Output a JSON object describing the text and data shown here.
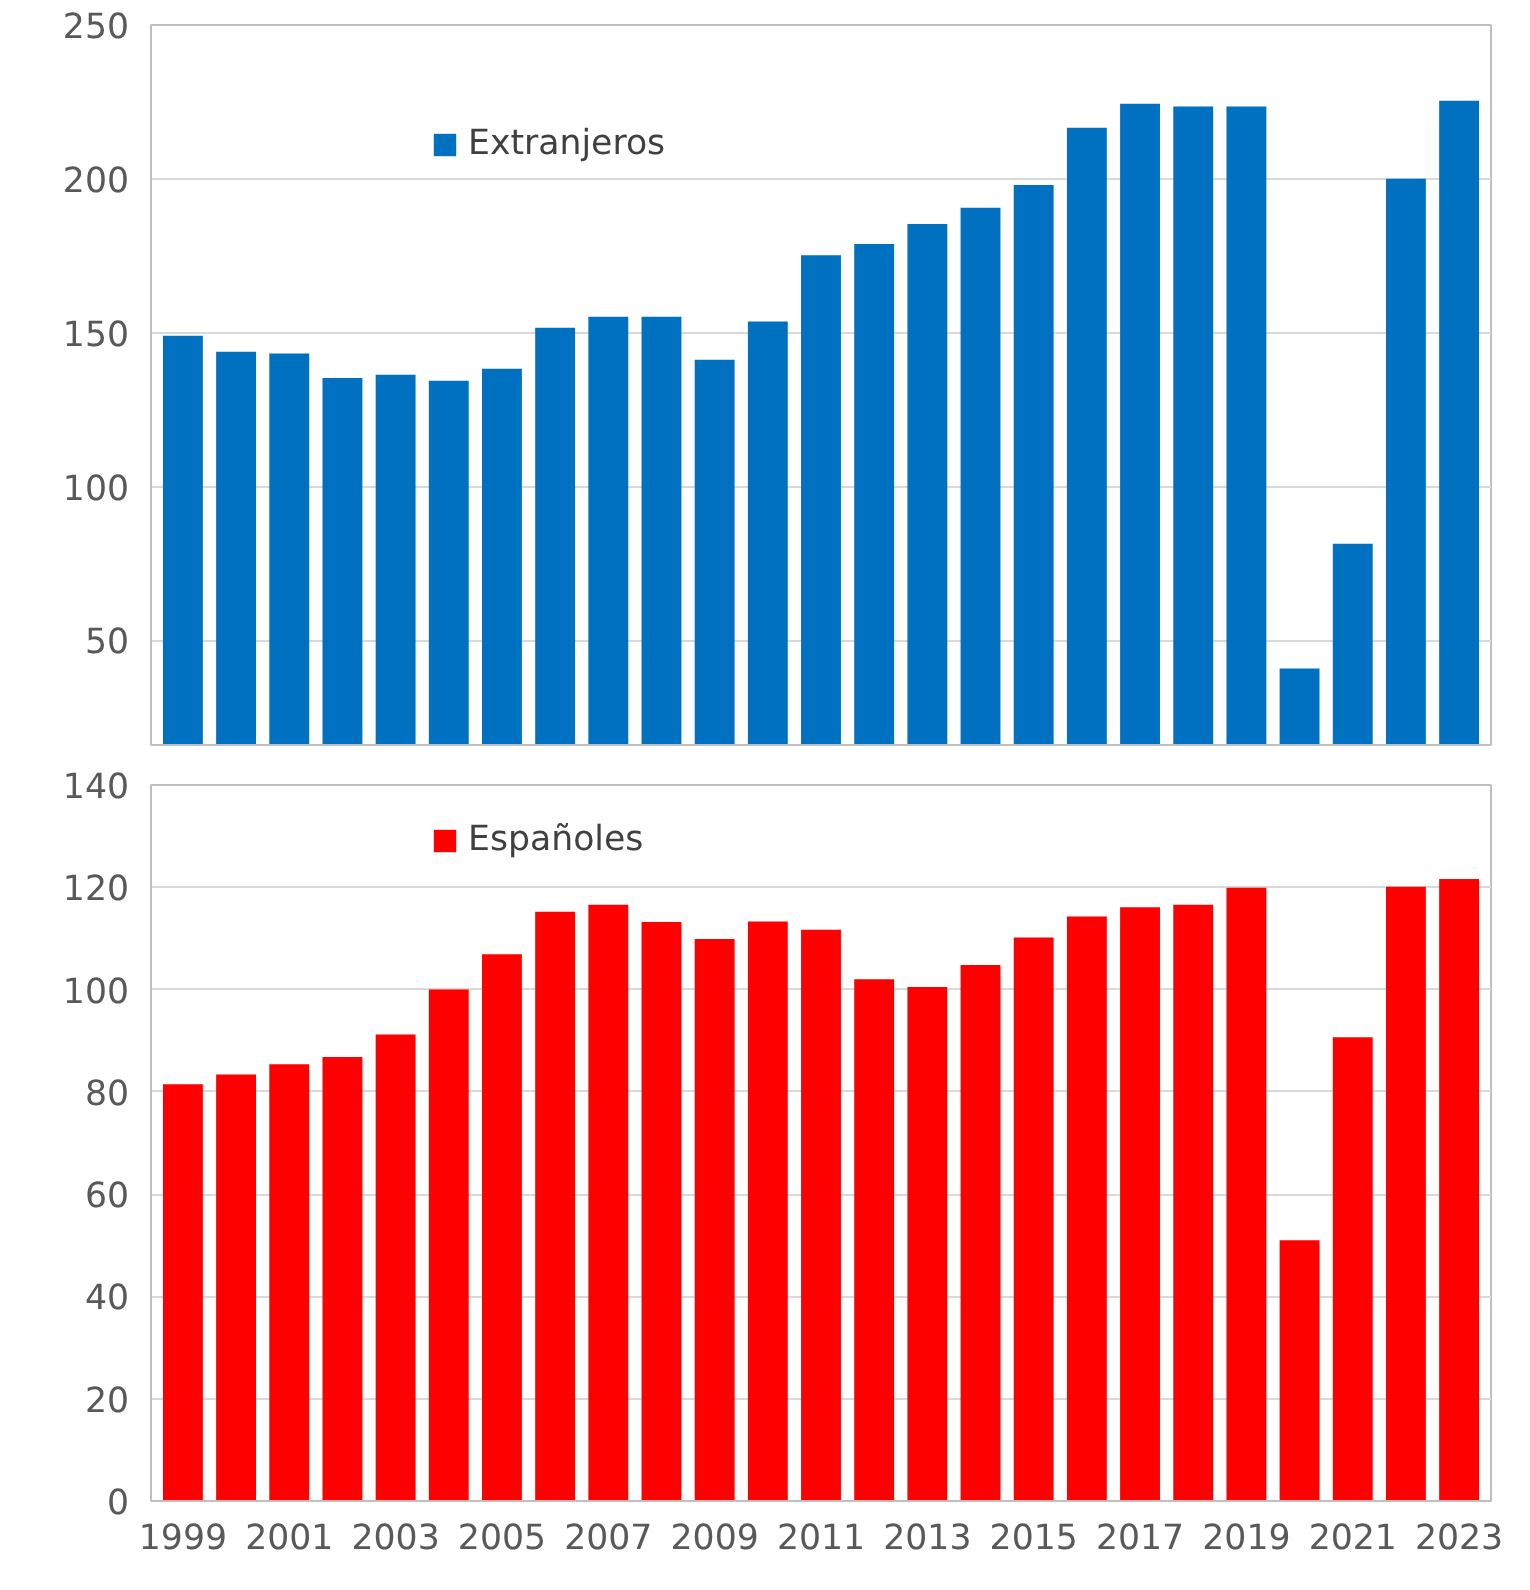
{
  "chart_data": [
    {
      "type": "bar",
      "categories": [
        "1999",
        null,
        "2001",
        null,
        "2003",
        null,
        "2005",
        null,
        "2007",
        null,
        "2009",
        null,
        "2011",
        null,
        "2013",
        null,
        "2015",
        null,
        "2017",
        null,
        "2019",
        null,
        "2021",
        null,
        "2023"
      ],
      "series": [
        {
          "name": "Extranjeros",
          "color": "#0070c0",
          "values": [
            149,
            143.8,
            143.2,
            135.3,
            136.3,
            134.4,
            138.3,
            151.6,
            155.2,
            155.2,
            141.2,
            153.6,
            175.2,
            178.8,
            185.3,
            190.6,
            198,
            216.6,
            224.4,
            223.5,
            223.5,
            40.9,
            81.4,
            200,
            225.4
          ]
        }
      ],
      "ylim": [
        16,
        250
      ],
      "yticks": [
        50,
        100,
        150,
        200,
        250
      ],
      "grid": "y",
      "legend": "top left",
      "tick_labels": "y"
    },
    {
      "type": "bar",
      "categories": [
        "1999",
        null,
        "2001",
        null,
        "2003",
        null,
        "2005",
        null,
        "2007",
        null,
        "2009",
        null,
        "2011",
        null,
        "2013",
        null,
        "2015",
        null,
        "2017",
        null,
        "2019",
        null,
        "2021",
        null,
        "2023"
      ],
      "series": [
        {
          "name": "Españoles",
          "color": "#ff0000",
          "values": [
            81.5,
            83.4,
            85.4,
            86.8,
            91.2,
            100,
            106.9,
            115.2,
            116.6,
            113.2,
            109.9,
            113.3,
            111.7,
            102,
            100.5,
            104.8,
            110.2,
            114.3,
            116.1,
            116.6,
            119.9,
            51,
            90.7,
            120.1,
            121.6
          ]
        }
      ],
      "ylim": [
        0,
        140
      ],
      "yticks": [
        0,
        20,
        40,
        60,
        80,
        100,
        120,
        140
      ],
      "grid": "y",
      "legend": "top left"
    }
  ]
}
